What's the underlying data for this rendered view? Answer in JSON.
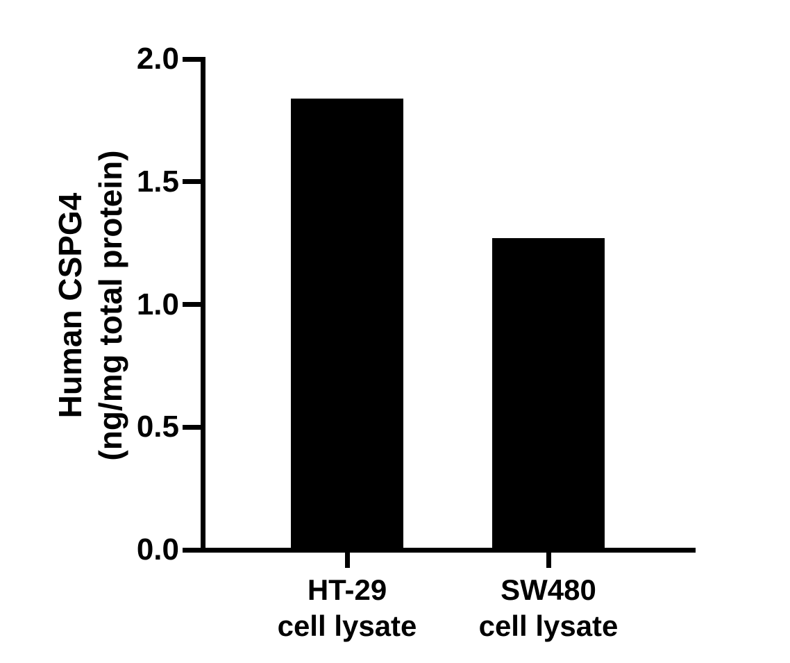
{
  "chart_data": {
    "type": "bar",
    "title": "",
    "xlabel": "",
    "ylabel": "Human CSPG4 (ng/mg total protein)",
    "ylabel_lines": [
      "Human CSPG4",
      "(ng/mg total protein)"
    ],
    "categories": [
      "HT-29 cell lysate",
      "SW480 cell lysate"
    ],
    "category_lines": [
      [
        "HT-29",
        "cell lysate"
      ],
      [
        "SW480",
        "cell lysate"
      ]
    ],
    "values": [
      1.84,
      1.27
    ],
    "ylim": [
      0.0,
      2.0
    ],
    "yticks": [
      0.0,
      0.5,
      1.0,
      1.5,
      2.0
    ],
    "ytick_labels": [
      "0.0",
      "0.5",
      "1.0",
      "1.5",
      "2.0"
    ],
    "grid": false,
    "legend": null,
    "bar_color": "#000000",
    "axis_color": "#000000",
    "background_color": "#ffffff",
    "text_color": "#000000"
  }
}
